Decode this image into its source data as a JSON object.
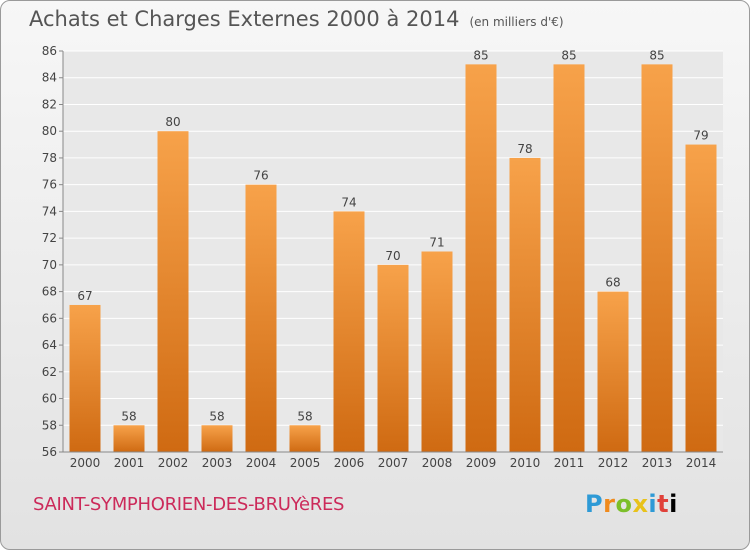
{
  "header": {
    "title": "Achats et Charges Externes 2000 à 2014",
    "unit": "(en milliers d'€)"
  },
  "footer": {
    "town": "SAINT-SYMPHORIEN-DES-BRUYèRES",
    "logo_letters": [
      "P",
      "r",
      "o",
      "x",
      "i",
      "t",
      "i"
    ]
  },
  "colors": {
    "bar_light": "#f7a24a",
    "bar_dark": "#cf6a12",
    "grid": "#ffffff",
    "axis_text": "#444444"
  },
  "chart_data": {
    "type": "bar",
    "categories": [
      "2000",
      "2001",
      "2002",
      "2003",
      "2004",
      "2005",
      "2006",
      "2007",
      "2008",
      "2009",
      "2010",
      "2011",
      "2012",
      "2013",
      "2014"
    ],
    "values": [
      67,
      58,
      80,
      58,
      76,
      58,
      74,
      70,
      71,
      85,
      78,
      85,
      68,
      85,
      79
    ],
    "yticks": [
      56,
      58,
      60,
      62,
      64,
      66,
      68,
      70,
      72,
      74,
      76,
      78,
      80,
      82,
      84,
      86
    ],
    "ylim": [
      56,
      86
    ],
    "grid": true,
    "title": "Achats et Charges Externes 2000 à 2014"
  }
}
